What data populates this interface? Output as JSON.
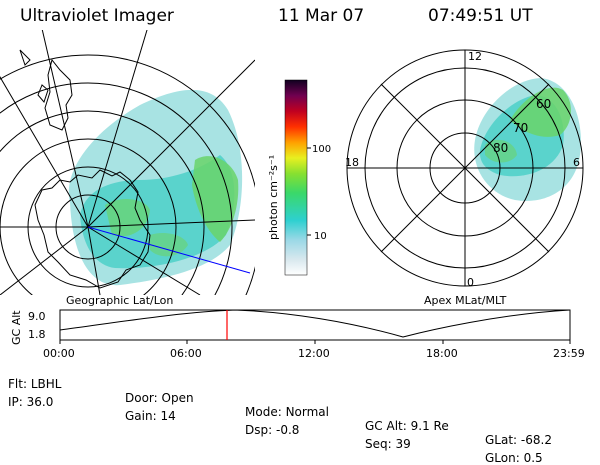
{
  "header": {
    "instrument": "Ultraviolet Imager",
    "date": "11 Mar 07",
    "time": "07:49:51 UT"
  },
  "left_map": {
    "label": "Geographic Lat/Lon"
  },
  "colorbar": {
    "unit_label": "photon cm⁻²s⁻¹",
    "ticks": [
      "100",
      "10"
    ]
  },
  "right_map": {
    "label": "Apex MLat/MLT",
    "mlt_labels": [
      "12",
      "18",
      "6",
      "0"
    ],
    "mlat_labels": [
      "60",
      "70",
      "80"
    ]
  },
  "altitude_panel": {
    "y_label": "GC Alt",
    "y_ticks": [
      "9.0",
      "1.8"
    ],
    "x_ticks": [
      "00:00",
      "06:00",
      "12:00",
      "18:00",
      "23:59"
    ],
    "current_time_marker": "07:49:51"
  },
  "info": {
    "row1": [
      {
        "label": "Flt:",
        "value": "LBHL"
      },
      {
        "label": "Door:",
        "value": "Open"
      },
      {
        "label": "Mode:",
        "value": "Normal"
      },
      {
        "label": "GC Alt:",
        "value": "9.1 Re"
      },
      {
        "label": "GLat:",
        "value": "-68.2"
      }
    ],
    "row2": [
      {
        "label": "IP:",
        "value": "36.0"
      },
      {
        "label": "Gain:",
        "value": "14"
      },
      {
        "label": "Dsp:",
        "value": "-0.8"
      },
      {
        "label": "Seq:",
        "value": "39"
      },
      {
        "label": "GLon:",
        "value": "0.5"
      }
    ]
  }
}
